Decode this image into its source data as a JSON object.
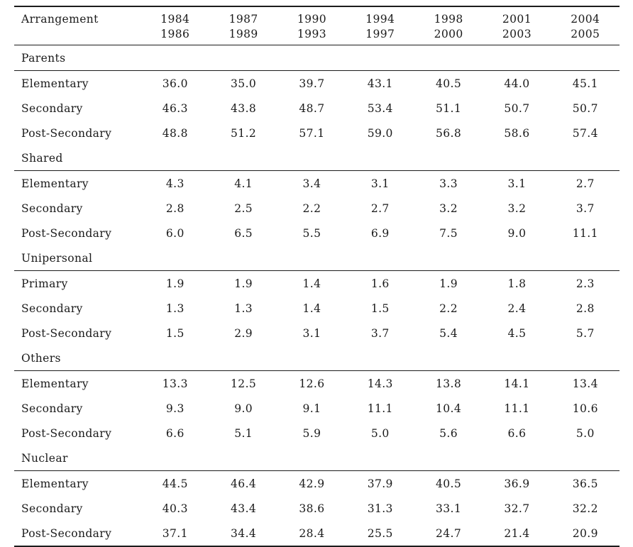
{
  "table": {
    "header": {
      "label": "Arrangement",
      "periods": [
        {
          "line1": "1984",
          "line2": "1986"
        },
        {
          "line1": "1987",
          "line2": "1989"
        },
        {
          "line1": "1990",
          "line2": "1993"
        },
        {
          "line1": "1994",
          "line2": "1997"
        },
        {
          "line1": "1998",
          "line2": "2000"
        },
        {
          "line1": "2001",
          "line2": "2003"
        },
        {
          "line1": "2004",
          "line2": "2005"
        }
      ]
    },
    "sections": [
      {
        "name": "Parents",
        "rows": [
          {
            "label": "Elementary",
            "values": [
              "36.0",
              "35.0",
              "39.7",
              "43.1",
              "40.5",
              "44.0",
              "45.1"
            ]
          },
          {
            "label": "Secondary",
            "values": [
              "46.3",
              "43.8",
              "48.7",
              "53.4",
              "51.1",
              "50.7",
              "50.7"
            ]
          },
          {
            "label": "Post-Secondary",
            "values": [
              "48.8",
              "51.2",
              "57.1",
              "59.0",
              "56.8",
              "58.6",
              "57.4"
            ]
          }
        ]
      },
      {
        "name": "Shared",
        "rows": [
          {
            "label": "Elementary",
            "values": [
              "4.3",
              "4.1",
              "3.4",
              "3.1",
              "3.3",
              "3.1",
              "2.7"
            ]
          },
          {
            "label": "Secondary",
            "values": [
              "2.8",
              "2.5",
              "2.2",
              "2.7",
              "3.2",
              "3.2",
              "3.7"
            ]
          },
          {
            "label": "Post-Secondary",
            "values": [
              "6.0",
              "6.5",
              "5.5",
              "6.9",
              "7.5",
              "9.0",
              "11.1"
            ]
          }
        ]
      },
      {
        "name": "Unipersonal",
        "rows": [
          {
            "label": "Primary",
            "values": [
              "1.9",
              "1.9",
              "1.4",
              "1.6",
              "1.9",
              "1.8",
              "2.3"
            ]
          },
          {
            "label": "Secondary",
            "values": [
              "1.3",
              "1.3",
              "1.4",
              "1.5",
              "2.2",
              "2.4",
              "2.8"
            ]
          },
          {
            "label": "Post-Secondary",
            "values": [
              "1.5",
              "2.9",
              "3.1",
              "3.7",
              "5.4",
              "4.5",
              "5.7"
            ]
          }
        ]
      },
      {
        "name": "Others",
        "rows": [
          {
            "label": "Elementary",
            "values": [
              "13.3",
              "12.5",
              "12.6",
              "14.3",
              "13.8",
              "14.1",
              "13.4"
            ]
          },
          {
            "label": "Secondary",
            "values": [
              "9.3",
              "9.0",
              "9.1",
              "11.1",
              "10.4",
              "11.1",
              "10.6"
            ]
          },
          {
            "label": "Post-Secondary",
            "values": [
              "6.6",
              "5.1",
              "5.9",
              "5.0",
              "5.6",
              "6.6",
              "5.0"
            ]
          }
        ]
      },
      {
        "name": "Nuclear",
        "rows": [
          {
            "label": "Elementary",
            "values": [
              "44.5",
              "46.4",
              "42.9",
              "37.9",
              "40.5",
              "36.9",
              "36.5"
            ]
          },
          {
            "label": "Secondary",
            "values": [
              "40.3",
              "43.4",
              "38.6",
              "31.3",
              "33.1",
              "32.7",
              "32.2"
            ]
          },
          {
            "label": "Post-Secondary",
            "values": [
              "37.1",
              "34.4",
              "28.4",
              "25.5",
              "24.7",
              "21.4",
              "20.9"
            ]
          }
        ]
      }
    ]
  },
  "colors": {
    "text": "#1a1a1a",
    "rule": "#1c1c1c",
    "background": "#ffffff"
  }
}
